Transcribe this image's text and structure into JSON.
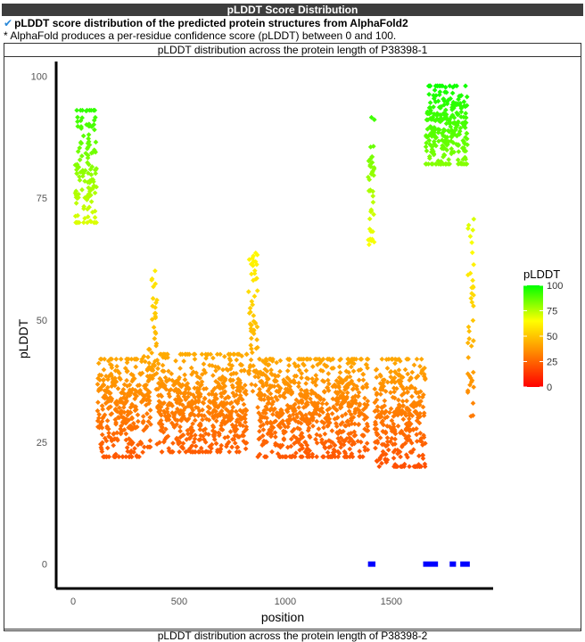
{
  "header": {
    "banner_title": "pLDDT Score Distribution",
    "section_title": "pLDDT score distribution of the predicted protein structures from AlphaFold2",
    "note": "* AlphaFold produces a per-residue confidence score (pLDDT) between 0 and 100."
  },
  "icons": {
    "check": "check-icon"
  },
  "chart_data": [
    {
      "type": "scatter",
      "title": "pLDDT distribution across the protein length of P38398-1",
      "xlabel": "position",
      "ylabel": "pLDDT",
      "xlim": [
        -80,
        1980
      ],
      "ylim": [
        -5,
        103
      ],
      "xticks": [
        0,
        500,
        1000,
        1500
      ],
      "yticks": [
        0,
        25,
        50,
        75,
        100
      ],
      "grid": false,
      "legend": {
        "title": "pLDDT",
        "position": "right",
        "ticks": [
          100,
          75,
          50,
          25,
          0
        ],
        "colorscale": [
          "#ff0000",
          "#ff8c00",
          "#ffff00",
          "#00ff00"
        ]
      },
      "highlight": {
        "color": "#0000ff",
        "y": 0,
        "segments": [
          [
            1390,
            1425
          ],
          [
            1650,
            1720
          ],
          [
            1775,
            1805
          ],
          [
            1825,
            1870
          ]
        ]
      },
      "regions": [
        {
          "x": [
            10,
            110
          ],
          "y": [
            70,
            93
          ]
        },
        {
          "x": [
            115,
            330
          ],
          "y": [
            22,
            42
          ]
        },
        {
          "x": [
            330,
            370
          ],
          "y": [
            24,
            44
          ]
        },
        {
          "x": [
            370,
            395
          ],
          "y": [
            35,
            62
          ]
        },
        {
          "x": [
            395,
            820
          ],
          "y": [
            23,
            43
          ]
        },
        {
          "x": [
            825,
            870
          ],
          "y": [
            35,
            64
          ]
        },
        {
          "x": [
            870,
            1390
          ],
          "y": [
            22,
            42
          ]
        },
        {
          "x": [
            1390,
            1420
          ],
          "y": [
            65,
            93
          ]
        },
        {
          "x": [
            1420,
            1660
          ],
          "y": [
            20,
            42
          ]
        },
        {
          "x": [
            1660,
            1860
          ],
          "y": [
            82,
            98
          ]
        },
        {
          "x": [
            1860,
            1890
          ],
          "y": [
            30,
            72
          ]
        }
      ]
    },
    {
      "type": "scatter",
      "title": "pLDDT distribution across the protein length of P38398-2"
    }
  ]
}
